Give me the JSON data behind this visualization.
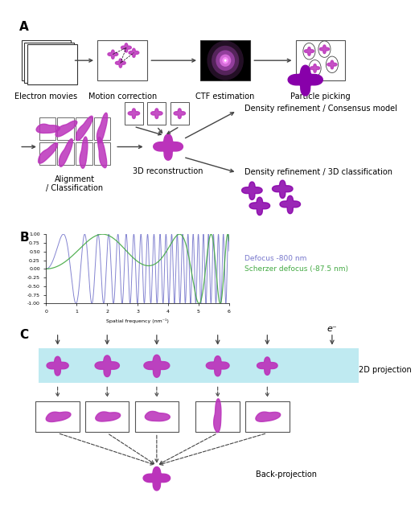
{
  "title_A": "A",
  "title_B": "B",
  "title_C": "C",
  "label_electron_movies": "Electron movies",
  "label_motion_correction": "Motion correction",
  "label_ctf_estimation": "CTF estimation",
  "label_particle_picking": "Particle picking",
  "label_alignment": "Alignment\n/ Classification",
  "label_3d_reconstruction": "3D reconstruction",
  "label_density_consensus": "Density refinement / Consensus model",
  "label_density_3d": "Density refinement / 3D classification",
  "label_2d_projection": "2D projection",
  "label_back_projection": "Back-projection",
  "label_electron": "e⁻",
  "label_defocus": "Defocus -800 nm",
  "label_scherzer": "Scherzer defocus (-87.5 nm)",
  "purple_color": "#BB33BB",
  "purple_dark": "#8800AA",
  "purple_mid": "#AA22BB",
  "blue_ctf": "#7777CC",
  "green_ctf": "#44AA44",
  "teal_bg": "#B8E8F0",
  "arrow_color": "#444444",
  "fontsize_labels": 7,
  "fontsize_section": 11,
  "fontsize_legend": 6.5,
  "xlabel_ctf": "Spatial frequency (nm⁻¹)"
}
